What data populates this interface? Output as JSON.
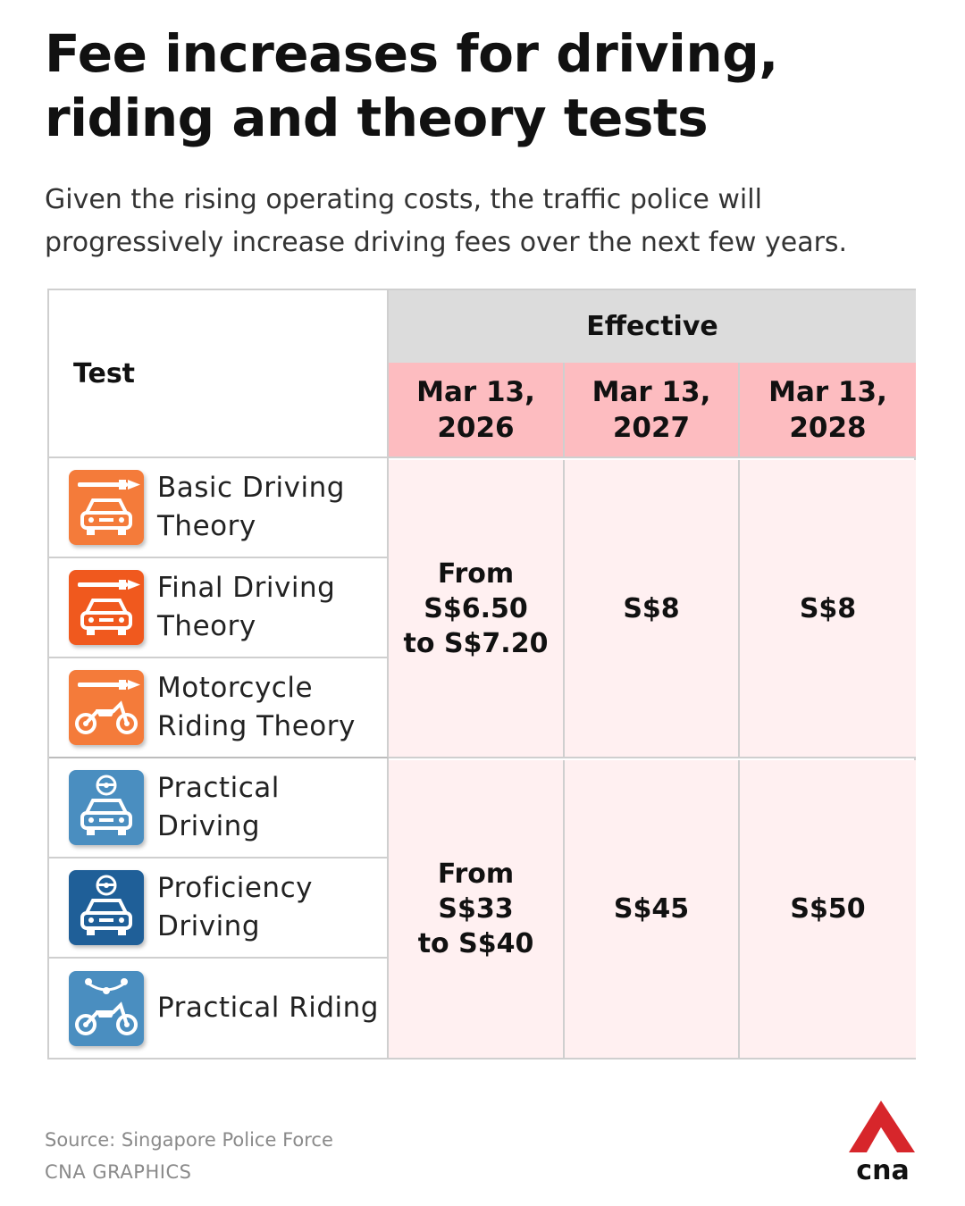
{
  "header": {
    "title": "Fee increases for driving, riding and theory tests",
    "subtitle": "Given the rising operating costs, the traffic police will progressively increase driving fees over the next few years."
  },
  "table": {
    "test_header": "Test",
    "effective_header": "Effective",
    "dates": [
      "Mar 13,\n2026",
      "Mar 13,\n2027",
      "Mar 13,\n2028"
    ],
    "rows": [
      {
        "label": "Basic Driving Theory",
        "icon": "car-theory-icon",
        "color": "#f47b3a"
      },
      {
        "label": "Final Driving Theory",
        "icon": "car-theory-icon",
        "color": "#f0591e"
      },
      {
        "label": "Motorcycle Riding Theory",
        "icon": "motorcycle-theory-icon",
        "color": "#f47b3a"
      },
      {
        "label": "Practical Driving",
        "icon": "car-steering-icon",
        "color": "#4a8ec0"
      },
      {
        "label": "Proficiency Driving",
        "icon": "car-steering-icon",
        "color": "#1f5f98"
      },
      {
        "label": "Practical Riding",
        "icon": "motorcycle-handlebar-icon",
        "color": "#4a8ec0"
      }
    ],
    "groups": [
      {
        "values": [
          "From\nS$6.50\nto S$7.20",
          "S$8",
          "S$8"
        ]
      },
      {
        "values": [
          "From\nS$33\nto S$40",
          "S$45",
          "S$50"
        ]
      }
    ]
  },
  "footer": {
    "source": "Source: Singapore Police Force",
    "credit": "CNA GRAPHICS",
    "logo_text": "cna",
    "logo_color": "#d7262b"
  },
  "colors": {
    "header_gray": "#dcdcdc",
    "date_pink": "#fdbcc0",
    "value_pink": "#fff0f1"
  }
}
